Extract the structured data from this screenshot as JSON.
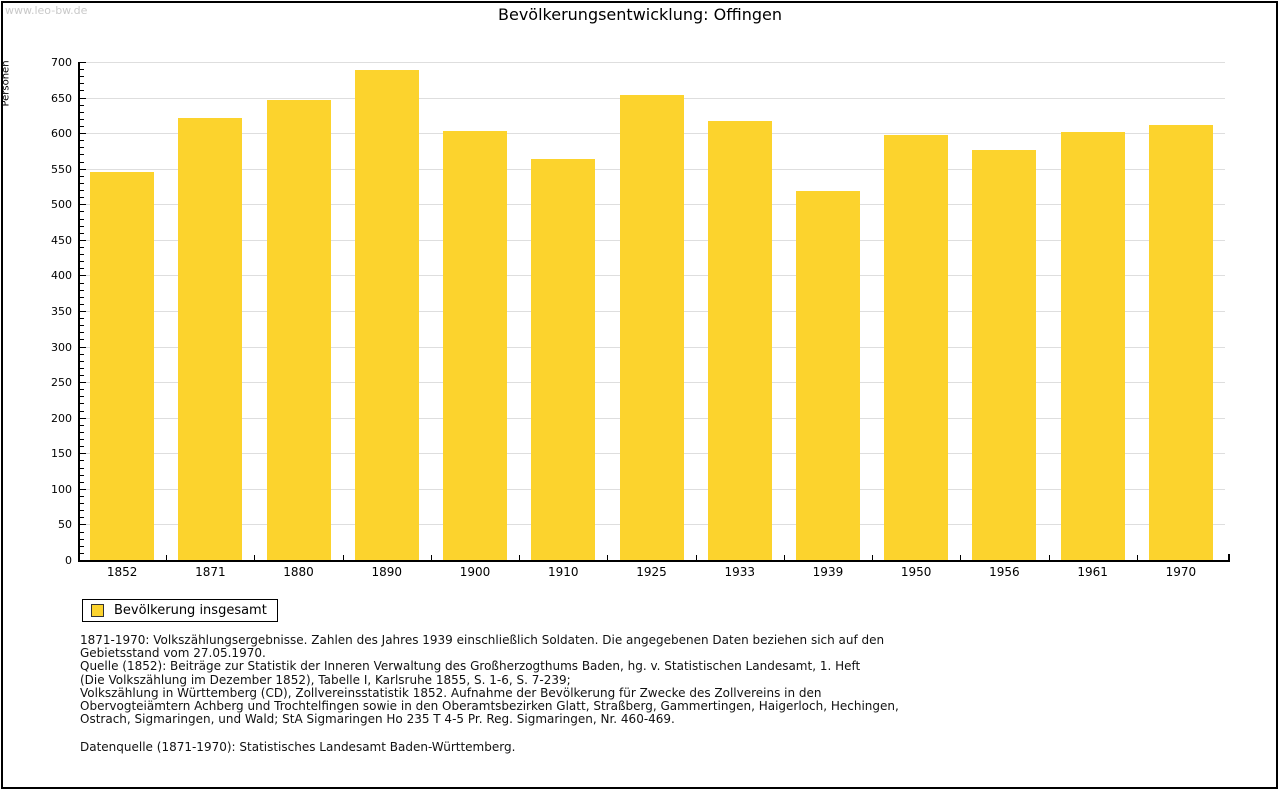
{
  "page": {
    "watermark": "www.leo-bw.de",
    "title": "Bevölkerungsentwicklung: Offingen"
  },
  "chart_data": {
    "type": "bar",
    "title": "Bevölkerungsentwicklung: Offingen",
    "xlabel": "",
    "ylabel": "Personen",
    "categories": [
      "1852",
      "1871",
      "1880",
      "1890",
      "1900",
      "1910",
      "1925",
      "1933",
      "1939",
      "1950",
      "1956",
      "1961",
      "1970"
    ],
    "values": [
      545,
      621,
      646,
      689,
      603,
      563,
      653,
      617,
      518,
      597,
      577,
      602,
      611
    ],
    "ylim": [
      0,
      700
    ],
    "ytick_step": 50,
    "y_minor_tick_step": 10,
    "grid": true,
    "legend_position": "bottom-left",
    "legend_entries": [
      "Bevölkerung insgesamt"
    ],
    "bar_color": "#FCD32D"
  },
  "legend": {
    "label": "Bevölkerung insgesamt",
    "swatch_color": "#FCD32D"
  },
  "footer": {
    "notes": [
      "1871-1970: Volkszählungsergebnisse. Zahlen des Jahres 1939 einschließlich Soldaten. Die angegebenen Daten beziehen sich auf den",
      "Gebietsstand vom 27.05.1970.",
      "Quelle (1852): Beiträge zur Statistik der Inneren Verwaltung des Großherzogthums Baden, hg. v. Statistischen Landesamt, 1. Heft",
      "(Die Volkszählung im Dezember 1852), Tabelle I, Karlsruhe 1855, S. 1-6, S. 7-239;",
      "Volkszählung in Württemberg (CD), Zollvereinsstatistik 1852. Aufnahme der Bevölkerung für Zwecke des Zollvereins in den",
      "Obervogteiämtern Achberg und Trochtelfingen sowie in den Oberamtsbezirken Glatt, Straßberg, Gammertingen, Haigerloch, Hechingen,",
      "Ostrach, Sigmaringen, und Wald; StA Sigmaringen Ho 235 T 4-5 Pr. Reg. Sigmaringen, Nr. 460-469."
    ],
    "datasource": "Datenquelle (1871-1970): Statistisches Landesamt Baden-Württemberg."
  },
  "colors": {
    "bar": "#FCD32D",
    "grid": "#DEDEDE",
    "axis": "#000000",
    "watermark": "#C9C9C9",
    "text": "#000000"
  }
}
